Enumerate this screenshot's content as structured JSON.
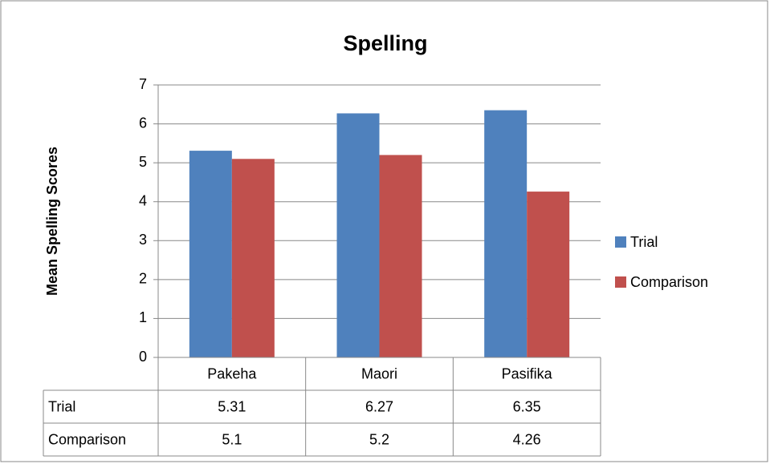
{
  "chart_data": {
    "type": "bar",
    "title": "Spelling",
    "y_label": "Mean  Spelling Scores",
    "categories": [
      "Pakeha",
      "Maori",
      "Pasifika"
    ],
    "series": [
      {
        "name": "Trial",
        "color": "#4f81bd",
        "values": [
          5.31,
          6.27,
          6.35
        ]
      },
      {
        "name": "Comparison",
        "color": "#c0504d",
        "values": [
          5.1,
          5.2,
          4.26
        ]
      }
    ],
    "ylim": [
      0,
      7
    ],
    "yticks": [
      0,
      1,
      2,
      3,
      4,
      5,
      6,
      7
    ],
    "grid": true,
    "legend": "right",
    "data_table": true
  }
}
